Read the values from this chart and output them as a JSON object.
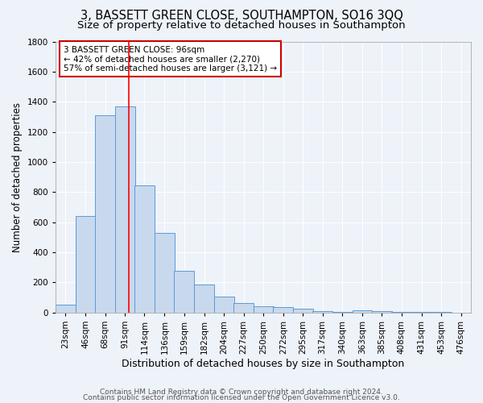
{
  "title": "3, BASSETT GREEN CLOSE, SOUTHAMPTON, SO16 3QQ",
  "subtitle": "Size of property relative to detached houses in Southampton",
  "xlabel": "Distribution of detached houses by size in Southampton",
  "ylabel": "Number of detached properties",
  "bar_color": "#c8d9ee",
  "bar_edge_color": "#5b9bd5",
  "background_color": "#eef2f9",
  "grid_color": "#ffffff",
  "categories": [
    "23sqm",
    "46sqm",
    "68sqm",
    "91sqm",
    "114sqm",
    "136sqm",
    "159sqm",
    "182sqm",
    "204sqm",
    "227sqm",
    "250sqm",
    "272sqm",
    "295sqm",
    "317sqm",
    "340sqm",
    "363sqm",
    "385sqm",
    "408sqm",
    "431sqm",
    "453sqm",
    "476sqm"
  ],
  "values": [
    55,
    640,
    1310,
    1370,
    845,
    530,
    275,
    185,
    105,
    65,
    42,
    35,
    25,
    12,
    5,
    15,
    10,
    2,
    2,
    2,
    1
  ],
  "bin_width": 23,
  "bin_starts": [
    11.5,
    34.5,
    57,
    79.5,
    102,
    125,
    147.5,
    170.5,
    193,
    215.5,
    238.5,
    261,
    283.5,
    306,
    328.5,
    351.5,
    374,
    396.5,
    419.5,
    442,
    464.5
  ],
  "red_line_x": 96,
  "ylim": [
    0,
    1800
  ],
  "yticks": [
    0,
    200,
    400,
    600,
    800,
    1000,
    1200,
    1400,
    1600,
    1800
  ],
  "xlim_left": 11.5,
  "xlim_right": 487.5,
  "annotation_text": "3 BASSETT GREEN CLOSE: 96sqm\n← 42% of detached houses are smaller (2,270)\n57% of semi-detached houses are larger (3,121) →",
  "annotation_box_color": "#ffffff",
  "annotation_box_edge_color": "#cc0000",
  "footer_line1": "Contains HM Land Registry data © Crown copyright and database right 2024.",
  "footer_line2": "Contains public sector information licensed under the Open Government Licence v3.0.",
  "title_fontsize": 10.5,
  "subtitle_fontsize": 9.5,
  "xlabel_fontsize": 9,
  "ylabel_fontsize": 8.5,
  "tick_fontsize": 7.5,
  "annotation_fontsize": 7.5,
  "footer_fontsize": 6.5
}
